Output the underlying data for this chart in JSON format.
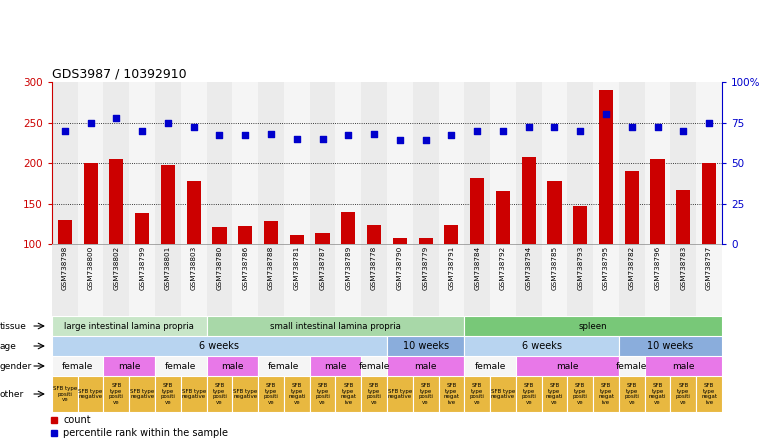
{
  "title": "GDS3987 / 10392910",
  "samples": [
    "GSM738798",
    "GSM738800",
    "GSM738802",
    "GSM738799",
    "GSM738801",
    "GSM738803",
    "GSM738780",
    "GSM738786",
    "GSM738788",
    "GSM738781",
    "GSM738787",
    "GSM738789",
    "GSM738778",
    "GSM738790",
    "GSM738779",
    "GSM738791",
    "GSM738784",
    "GSM738792",
    "GSM738794",
    "GSM738785",
    "GSM738793",
    "GSM738795",
    "GSM738782",
    "GSM738796",
    "GSM738783",
    "GSM738797"
  ],
  "counts": [
    130,
    200,
    205,
    138,
    198,
    178,
    121,
    122,
    128,
    111,
    114,
    140,
    124,
    107,
    108,
    123,
    182,
    165,
    208,
    178,
    147,
    290,
    190,
    205,
    167,
    200
  ],
  "percentiles": [
    70,
    75,
    78,
    70,
    75,
    72,
    67,
    67,
    68,
    65,
    65,
    67,
    68,
    64,
    64,
    67,
    70,
    70,
    72,
    72,
    70,
    80,
    72,
    72,
    70,
    75
  ],
  "ylim_left": [
    100,
    300
  ],
  "ylim_right": [
    0,
    100
  ],
  "yticks_left": [
    100,
    150,
    200,
    250,
    300
  ],
  "yticks_right": [
    0,
    25,
    50,
    75,
    100
  ],
  "tissue_groups": [
    {
      "label": "large intestinal lamina propria",
      "start": 0,
      "end": 6,
      "color": "#c8e6c8"
    },
    {
      "label": "small intestinal lamina propria",
      "start": 6,
      "end": 16,
      "color": "#a8d8a8"
    },
    {
      "label": "spleen",
      "start": 16,
      "end": 26,
      "color": "#78c878"
    }
  ],
  "age_groups": [
    {
      "label": "6 weeks",
      "start": 0,
      "end": 13,
      "color": "#b8d4f0"
    },
    {
      "label": "10 weeks",
      "start": 13,
      "end": 16,
      "color": "#8aaddc"
    },
    {
      "label": "6 weeks",
      "start": 16,
      "end": 22,
      "color": "#b8d4f0"
    },
    {
      "label": "10 weeks",
      "start": 22,
      "end": 26,
      "color": "#8aaddc"
    }
  ],
  "gender_groups": [
    {
      "label": "female",
      "start": 0,
      "end": 2,
      "color": "#f5f5f5"
    },
    {
      "label": "male",
      "start": 2,
      "end": 4,
      "color": "#e878e8"
    },
    {
      "label": "female",
      "start": 4,
      "end": 6,
      "color": "#f5f5f5"
    },
    {
      "label": "male",
      "start": 6,
      "end": 8,
      "color": "#e878e8"
    },
    {
      "label": "female",
      "start": 8,
      "end": 10,
      "color": "#f5f5f5"
    },
    {
      "label": "male",
      "start": 10,
      "end": 12,
      "color": "#e878e8"
    },
    {
      "label": "female",
      "start": 12,
      "end": 13,
      "color": "#f5f5f5"
    },
    {
      "label": "male",
      "start": 13,
      "end": 16,
      "color": "#e878e8"
    },
    {
      "label": "female",
      "start": 16,
      "end": 18,
      "color": "#f5f5f5"
    },
    {
      "label": "male",
      "start": 18,
      "end": 22,
      "color": "#e878e8"
    },
    {
      "label": "female",
      "start": 22,
      "end": 23,
      "color": "#f5f5f5"
    },
    {
      "label": "male",
      "start": 23,
      "end": 26,
      "color": "#e878e8"
    }
  ],
  "other_groups": [
    {
      "label": "SFB type\npositi\nve",
      "start": 0,
      "end": 1,
      "color": "#e8b840"
    },
    {
      "label": "SFB type\nnegative",
      "start": 1,
      "end": 2,
      "color": "#e8b840"
    },
    {
      "label": "SFB\ntype\npositi\nve",
      "start": 2,
      "end": 3,
      "color": "#e8b840"
    },
    {
      "label": "SFB type\nnegative",
      "start": 3,
      "end": 4,
      "color": "#e8b840"
    },
    {
      "label": "SFB\ntype\npositi\nve",
      "start": 4,
      "end": 5,
      "color": "#e8b840"
    },
    {
      "label": "SFB type\nnegative",
      "start": 5,
      "end": 6,
      "color": "#e8b840"
    },
    {
      "label": "SFB\ntype\npositi\nve",
      "start": 6,
      "end": 7,
      "color": "#e8b840"
    },
    {
      "label": "SFB type\nnegative",
      "start": 7,
      "end": 8,
      "color": "#e8b840"
    },
    {
      "label": "SFB\ntype\npositi\nve",
      "start": 8,
      "end": 9,
      "color": "#e8b840"
    },
    {
      "label": "SFB\ntype\nnegati\nve",
      "start": 9,
      "end": 10,
      "color": "#e8b840"
    },
    {
      "label": "SFB\ntype\npositi\nve",
      "start": 10,
      "end": 11,
      "color": "#e8b840"
    },
    {
      "label": "SFB\ntype\nnegat\nive",
      "start": 11,
      "end": 12,
      "color": "#e8b840"
    },
    {
      "label": "SFB\ntype\npositi\nve",
      "start": 12,
      "end": 13,
      "color": "#e8b840"
    },
    {
      "label": "SFB type\nnegative",
      "start": 13,
      "end": 14,
      "color": "#e8b840"
    },
    {
      "label": "SFB\ntype\npositi\nve",
      "start": 14,
      "end": 15,
      "color": "#e8b840"
    },
    {
      "label": "SFB\ntype\nnegat\nive",
      "start": 15,
      "end": 16,
      "color": "#e8b840"
    },
    {
      "label": "SFB\ntype\npositi\nve",
      "start": 16,
      "end": 17,
      "color": "#e8b840"
    },
    {
      "label": "SFB type\nnegative",
      "start": 17,
      "end": 18,
      "color": "#e8b840"
    },
    {
      "label": "SFB\ntype\npositi\nve",
      "start": 18,
      "end": 19,
      "color": "#e8b840"
    },
    {
      "label": "SFB\ntype\nnegati\nve",
      "start": 19,
      "end": 20,
      "color": "#e8b840"
    },
    {
      "label": "SFB\ntype\npositi\nve",
      "start": 20,
      "end": 21,
      "color": "#e8b840"
    },
    {
      "label": "SFB\ntype\nnegat\nive",
      "start": 21,
      "end": 22,
      "color": "#e8b840"
    },
    {
      "label": "SFB\ntype\npositi\nve",
      "start": 22,
      "end": 23,
      "color": "#e8b840"
    },
    {
      "label": "SFB\ntype\nnegati\nve",
      "start": 23,
      "end": 24,
      "color": "#e8b840"
    },
    {
      "label": "SFB\ntype\npositi\nve",
      "start": 24,
      "end": 25,
      "color": "#e8b840"
    },
    {
      "label": "SFB\ntype\nnegat\nive",
      "start": 25,
      "end": 26,
      "color": "#e8b840"
    }
  ],
  "bar_color": "#cc0000",
  "dot_color": "#0000cc",
  "background_color": "#ffffff",
  "right_axis_color": "#0000cc",
  "left_axis_color": "#cc0000"
}
